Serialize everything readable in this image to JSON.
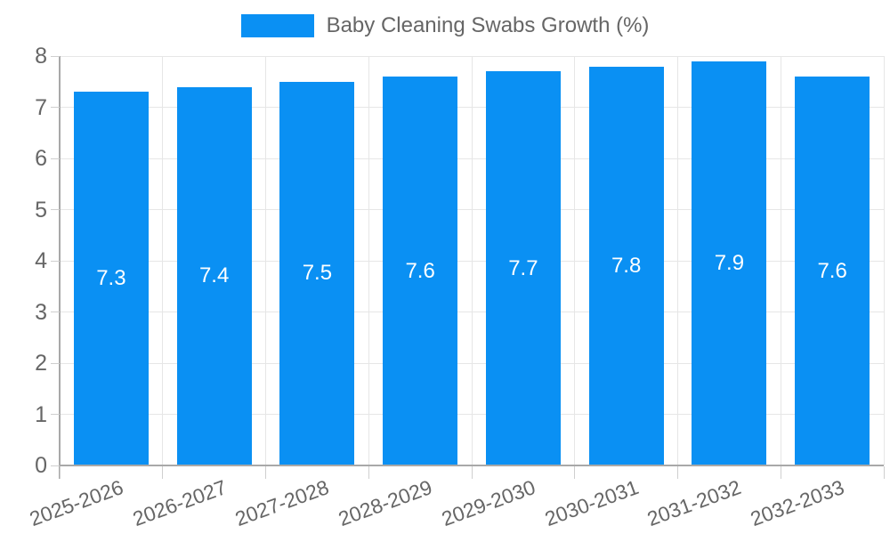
{
  "legend": {
    "label": "Baby Cleaning Swabs Growth (%)"
  },
  "colors": {
    "bar": "#0a90f3",
    "text": "#666666",
    "grid": "#e6e6e6",
    "axis": "#a8a8a8",
    "tick": "#cfcfcf",
    "value_label": "#ffffff",
    "background": "#ffffff"
  },
  "chart_data": {
    "type": "bar",
    "title": "Baby Cleaning Swabs Growth (%)",
    "categories": [
      "2025-2026",
      "2026-2027",
      "2027-2028",
      "2028-2029",
      "2029-2030",
      "2030-2031",
      "2031-2032",
      "2032-2033"
    ],
    "values": [
      7.3,
      7.4,
      7.5,
      7.6,
      7.7,
      7.8,
      7.9,
      7.6
    ],
    "value_labels": [
      "7.3",
      "7.4",
      "7.5",
      "7.6",
      "7.7",
      "7.8",
      "7.9",
      "7.6"
    ],
    "xlabel": "",
    "ylabel": "",
    "ylim": [
      0,
      8
    ],
    "yticks": [
      0,
      1,
      2,
      3,
      4,
      5,
      6,
      7,
      8
    ],
    "grid": true,
    "legend_position": "top",
    "value_labels_inside_bars": true,
    "x_label_rotation_deg": -20
  }
}
